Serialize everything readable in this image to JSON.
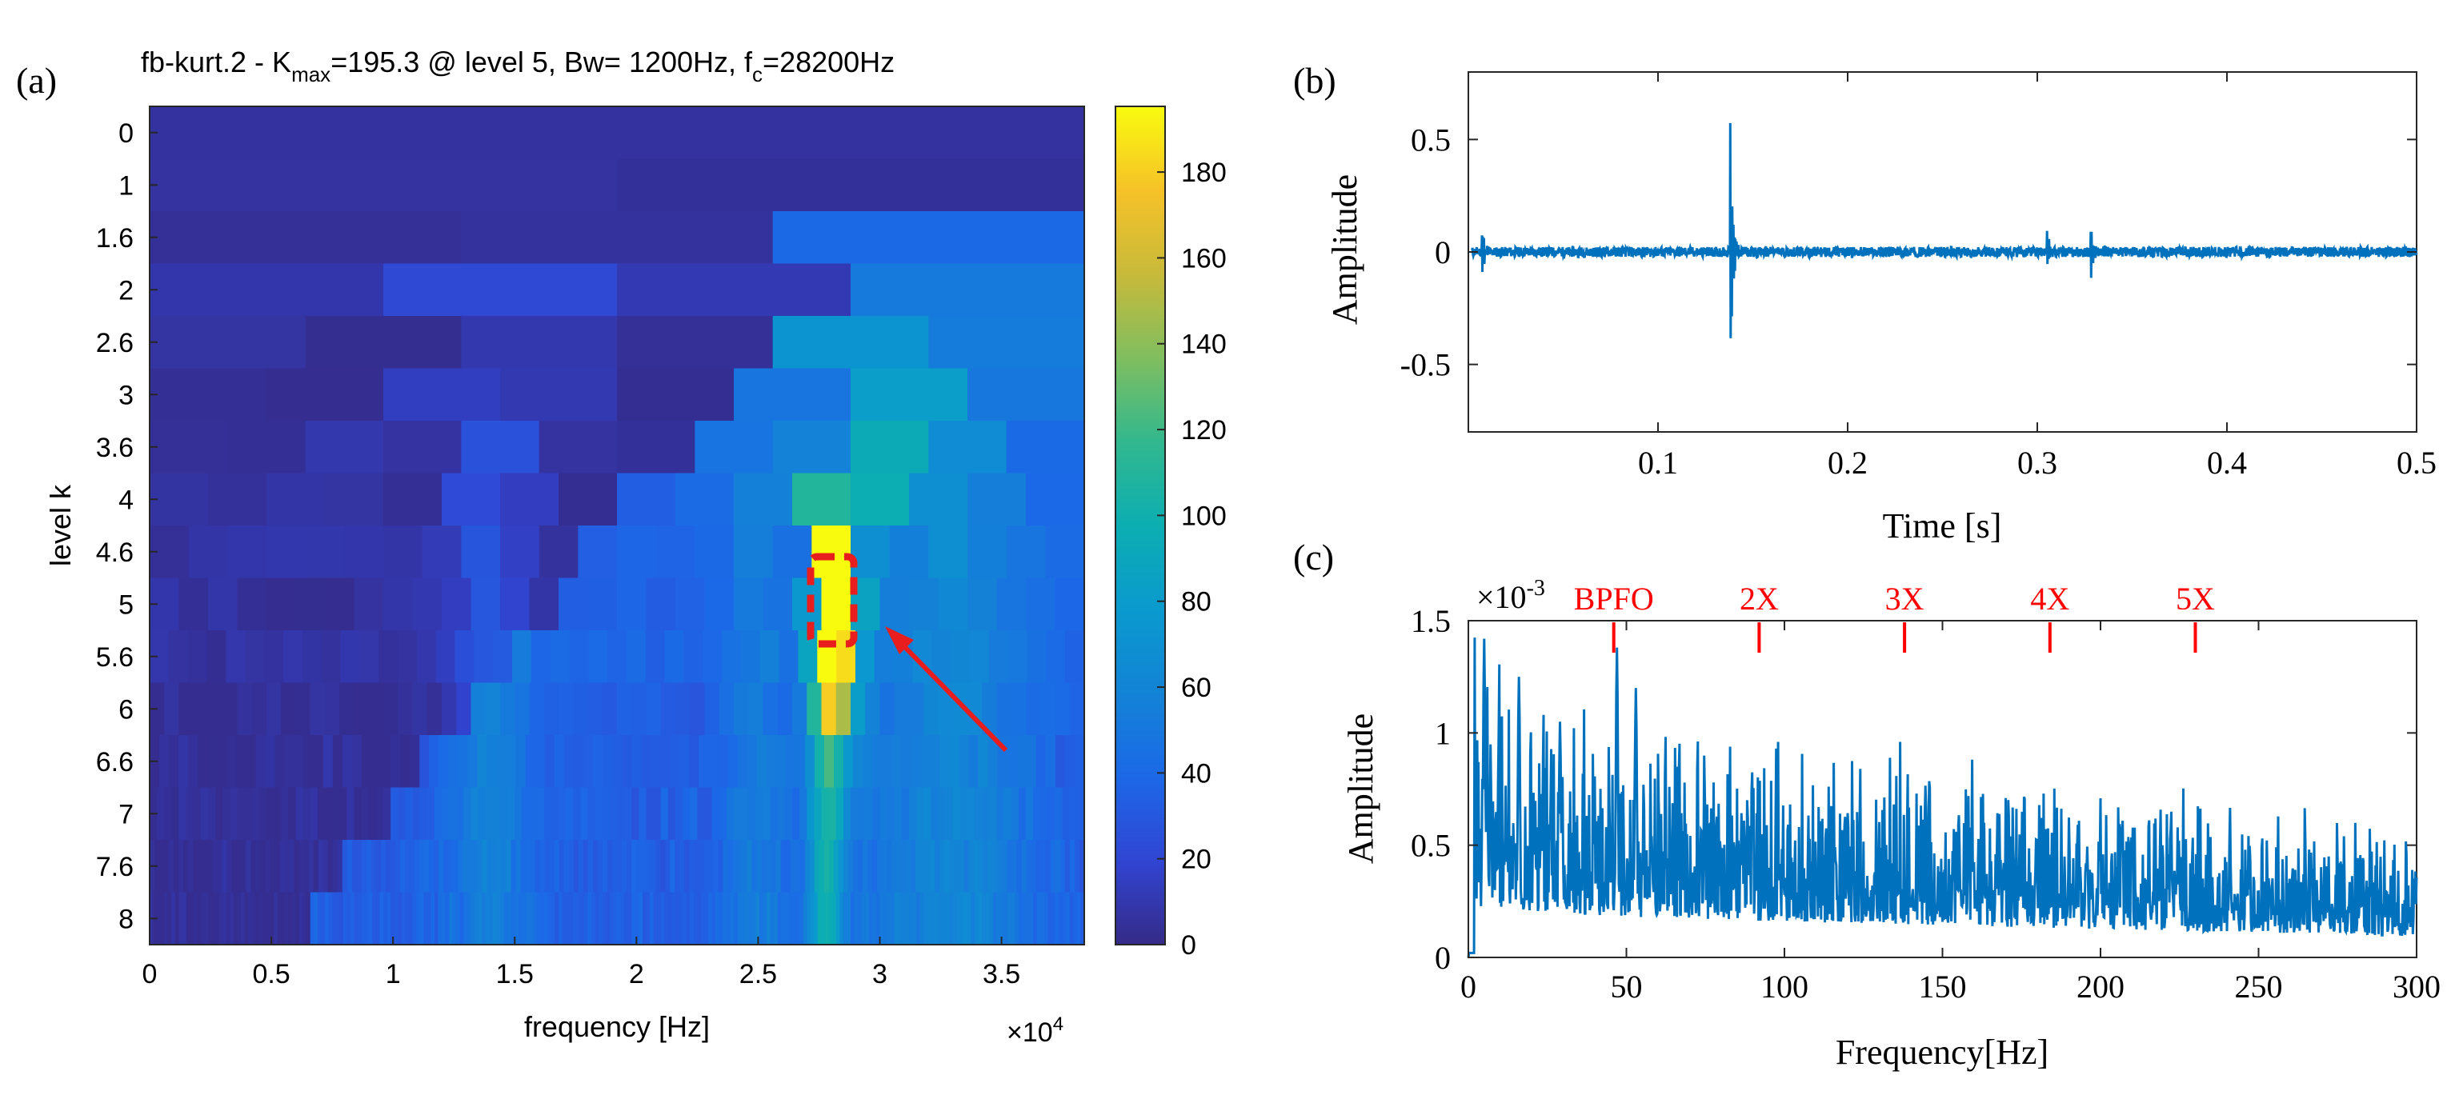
{
  "chart_data": [
    {
      "id": "a",
      "panel_label": "(a)",
      "type": "heatmap",
      "title_prefix": "fb-kurt.2 - K",
      "title_sub": "max",
      "title_mid": "=195.3 @ level 5, Bw= 1200Hz, f",
      "title_sub2": "c",
      "title_suffix": "=28200Hz",
      "xlabel": "frequency [Hz]",
      "ylabel": "level k",
      "xlim": [
        0,
        38400
      ],
      "xticks": [
        "0",
        "0.5",
        "1",
        "1.5",
        "2",
        "2.5",
        "3",
        "3.5"
      ],
      "x_multiplier_base": "×10",
      "x_multiplier_exp": "4",
      "levels": [
        "0",
        "1",
        "1.6",
        "2",
        "2.6",
        "3",
        "3.6",
        "4",
        "4.6",
        "5",
        "5.6",
        "6",
        "6.6",
        "7",
        "7.6",
        "8"
      ],
      "colorbar_ticks": [
        "0",
        "20",
        "40",
        "60",
        "80",
        "100",
        "120",
        "140",
        "160",
        "180"
      ],
      "clim": [
        0,
        195.3
      ],
      "kmax": 195.3,
      "best_level": "5",
      "bandwidth_hz": 1200,
      "center_freq_hz": 28200,
      "colormap": "parula"
    },
    {
      "id": "b",
      "panel_label": "(b)",
      "type": "line",
      "xlabel": "Time [s]",
      "ylabel": "Amplitude",
      "xlim": [
        0,
        0.5
      ],
      "ylim": [
        -0.8,
        0.8
      ],
      "xticks": [
        "0.1",
        "0.2",
        "0.3",
        "0.4",
        "0.5"
      ],
      "yticks": [
        "0.5",
        "0",
        "-0.5"
      ],
      "color": "#0072BD",
      "impulses": [
        {
          "t": 0.007,
          "amp": 0.13
        },
        {
          "t": 0.138,
          "amp": 0.62
        },
        {
          "t": 0.305,
          "amp": 0.1
        },
        {
          "t": 0.328,
          "amp": 0.14
        }
      ]
    },
    {
      "id": "c",
      "panel_label": "(c)",
      "type": "line",
      "xlabel": "Frequency[Hz]",
      "ylabel": "Amplitude",
      "xlim": [
        0,
        300
      ],
      "ylim": [
        0,
        1.5
      ],
      "xticks": [
        "0",
        "50",
        "100",
        "150",
        "200",
        "250",
        "300"
      ],
      "yticks": [
        "0",
        "0.5",
        "1",
        "1.5"
      ],
      "y_multiplier_base": "×10",
      "y_multiplier_exp": "-3",
      "color": "#0072BD",
      "marker_color": "#FF0000",
      "markers": [
        {
          "label": "BPFO",
          "freq": 46
        },
        {
          "label": "2X",
          "freq": 92
        },
        {
          "label": "3X",
          "freq": 138
        },
        {
          "label": "4X",
          "freq": 184
        },
        {
          "label": "5X",
          "freq": 230
        }
      ],
      "peaks": [
        {
          "f": 5,
          "v": 1.42
        },
        {
          "f": 16,
          "v": 1.25
        },
        {
          "f": 47,
          "v": 1.38
        },
        {
          "f": 29,
          "v": 1.05
        },
        {
          "f": 53,
          "v": 1.2
        }
      ]
    }
  ]
}
